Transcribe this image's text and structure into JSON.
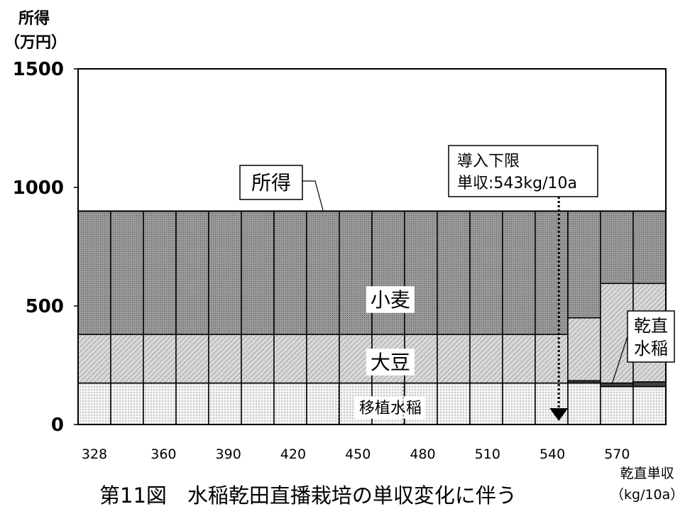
{
  "chart_data": {
    "type": "bar",
    "stacked": true,
    "title": "第11図　水稲乾田直播栽培の単収変化に伴う",
    "ylabel_line1": "所得",
    "ylabel_line2": "（万円）",
    "xlabel_line1": "乾直単収",
    "xlabel_line2": "（kg/10a）",
    "ylim": [
      0,
      1500
    ],
    "yticks": [
      0,
      500,
      1000,
      1500
    ],
    "x_tick_labels": [
      "328",
      "360",
      "390",
      "420",
      "450",
      "480",
      "510",
      "540",
      "570"
    ],
    "categories": [
      328,
      345,
      360,
      375,
      390,
      405,
      420,
      435,
      450,
      465,
      480,
      495,
      510,
      525,
      540,
      555,
      570,
      585
    ],
    "series": [
      {
        "name": "移植水稲",
        "values": [
          175,
          175,
          175,
          175,
          175,
          175,
          175,
          175,
          175,
          175,
          175,
          175,
          175,
          175,
          175,
          175,
          160,
          160
        ]
      },
      {
        "name": "乾直水稲",
        "values": [
          0,
          0,
          0,
          0,
          0,
          0,
          0,
          0,
          0,
          0,
          0,
          0,
          0,
          0,
          0,
          10,
          15,
          20
        ]
      },
      {
        "name": "大豆",
        "values": [
          205,
          205,
          205,
          205,
          205,
          205,
          205,
          205,
          205,
          205,
          205,
          205,
          205,
          205,
          205,
          265,
          420,
          415
        ]
      },
      {
        "name": "小麦",
        "values": [
          520,
          520,
          520,
          520,
          520,
          520,
          520,
          520,
          520,
          520,
          520,
          520,
          520,
          520,
          520,
          450,
          305,
          305
        ]
      }
    ],
    "income_total": 900,
    "annotation": {
      "line1": "導入下限",
      "line2": "単収:543kg/10a",
      "x": 543
    },
    "labels": {
      "income": "所得",
      "wheat": "小麦",
      "soy": "大豆",
      "transplant": "移植水稲",
      "direct_line1": "乾直",
      "direct_line2": "水稲"
    },
    "ytick_labels": [
      "0",
      "500",
      "1000",
      "1500"
    ],
    "colors": {
      "transplant": "#f0f0f0",
      "direct": "#404040",
      "soy": "#cfcfcf",
      "wheat": "#8e8e8e",
      "frame": "#000000"
    },
    "grid": false
  }
}
